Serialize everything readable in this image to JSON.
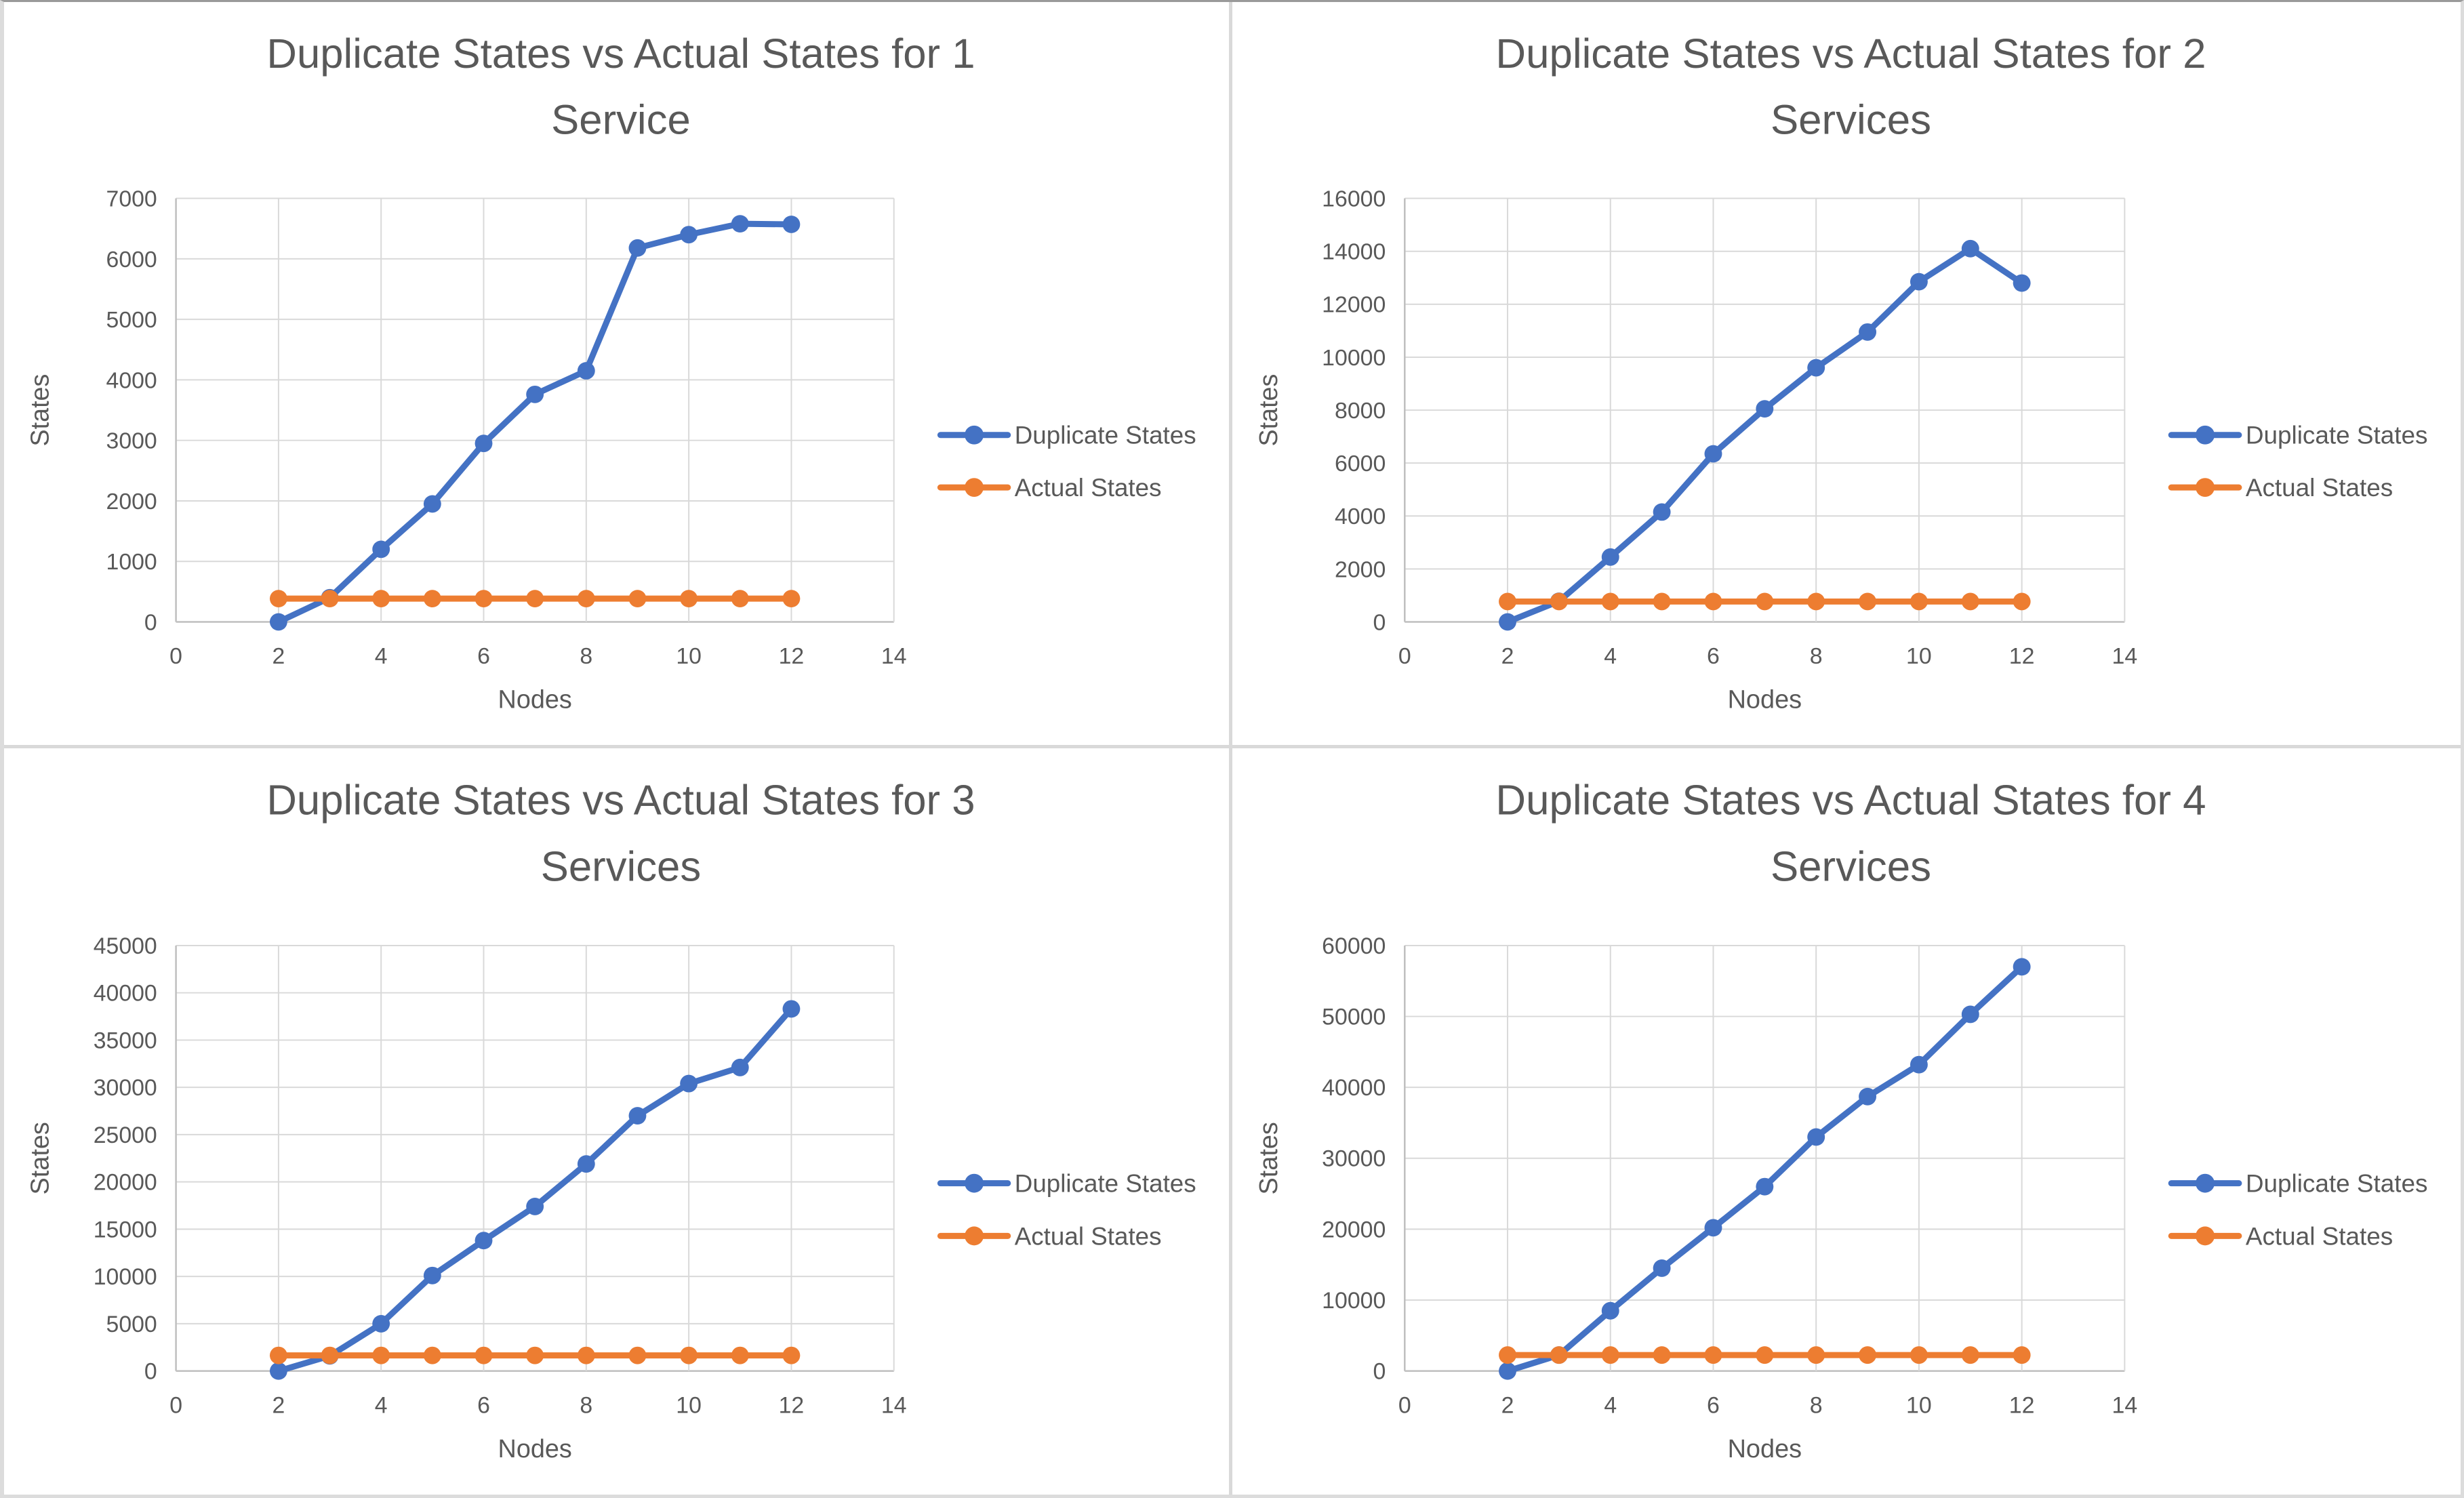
{
  "page": {
    "background": "#ffffff"
  },
  "style": {
    "series_duplicate_color": "#4472C4",
    "series_actual_color": "#ED7D31",
    "title_color": "#595959",
    "tick_label_color": "#595959",
    "axis_title_color": "#595959",
    "gridline_color": "#D9D9D9",
    "axis_line_color": "#BFBFBF"
  },
  "chart_data": [
    {
      "type": "line",
      "title_lines": [
        "Duplicate States vs Actual States for 1",
        "Service"
      ],
      "xlabel": "Nodes",
      "ylabel": "States",
      "xlim": [
        0,
        14
      ],
      "xstep": 2,
      "ylim": [
        0,
        7000
      ],
      "ystep": 1000,
      "grid": true,
      "legend_position": "right",
      "x": [
        2,
        3,
        4,
        5,
        6,
        7,
        8,
        9,
        10,
        11,
        12
      ],
      "series": [
        {
          "name": "Duplicate States",
          "color": "#4472C4",
          "values": [
            0,
            400,
            1200,
            1950,
            2950,
            3760,
            4150,
            6180,
            6400,
            6580,
            6570
          ]
        },
        {
          "name": "Actual States",
          "color": "#ED7D31",
          "values": [
            385,
            385,
            385,
            385,
            385,
            385,
            385,
            385,
            385,
            385,
            385
          ]
        }
      ]
    },
    {
      "type": "line",
      "title_lines": [
        "Duplicate States vs Actual States for 2",
        "Services"
      ],
      "xlabel": "Nodes",
      "ylabel": "States",
      "xlim": [
        0,
        14
      ],
      "xstep": 2,
      "ylim": [
        0,
        16000
      ],
      "ystep": 2000,
      "grid": true,
      "legend_position": "right",
      "x": [
        2,
        3,
        4,
        5,
        6,
        7,
        8,
        9,
        10,
        11,
        12
      ],
      "series": [
        {
          "name": "Duplicate States",
          "color": "#4472C4",
          "values": [
            0,
            780,
            2450,
            4150,
            6350,
            8050,
            9600,
            10950,
            12850,
            14100,
            12800
          ]
        },
        {
          "name": "Actual States",
          "color": "#ED7D31",
          "values": [
            770,
            770,
            770,
            770,
            770,
            770,
            770,
            770,
            770,
            770,
            770
          ]
        }
      ]
    },
    {
      "type": "line",
      "title_lines": [
        "Duplicate States vs Actual States for 3",
        "Services"
      ],
      "xlabel": "Nodes",
      "ylabel": "States",
      "xlim": [
        0,
        14
      ],
      "xstep": 2,
      "ylim": [
        0,
        45000
      ],
      "ystep": 5000,
      "grid": true,
      "legend_position": "right",
      "x": [
        2,
        3,
        4,
        5,
        6,
        7,
        8,
        9,
        10,
        11,
        12
      ],
      "series": [
        {
          "name": "Duplicate States",
          "color": "#4472C4",
          "values": [
            0,
            1600,
            5000,
            10100,
            13800,
            17400,
            21900,
            27000,
            30400,
            32100,
            38300
          ]
        },
        {
          "name": "Actual States",
          "color": "#ED7D31",
          "values": [
            1650,
            1650,
            1650,
            1650,
            1650,
            1650,
            1650,
            1650,
            1650,
            1650,
            1650
          ]
        }
      ]
    },
    {
      "type": "line",
      "title_lines": [
        "Duplicate States vs Actual States for 4",
        "Services"
      ],
      "xlabel": "Nodes",
      "ylabel": "States",
      "xlim": [
        0,
        14
      ],
      "xstep": 2,
      "ylim": [
        0,
        60000
      ],
      "ystep": 10000,
      "grid": true,
      "legend_position": "right",
      "x": [
        2,
        3,
        4,
        5,
        6,
        7,
        8,
        9,
        10,
        11,
        12
      ],
      "series": [
        {
          "name": "Duplicate States",
          "color": "#4472C4",
          "values": [
            0,
            2250,
            8500,
            14500,
            20200,
            26000,
            33000,
            38700,
            43200,
            50300,
            57000
          ]
        },
        {
          "name": "Actual States",
          "color": "#ED7D31",
          "values": [
            2250,
            2250,
            2250,
            2250,
            2250,
            2250,
            2250,
            2250,
            2250,
            2250,
            2250
          ]
        }
      ]
    }
  ]
}
